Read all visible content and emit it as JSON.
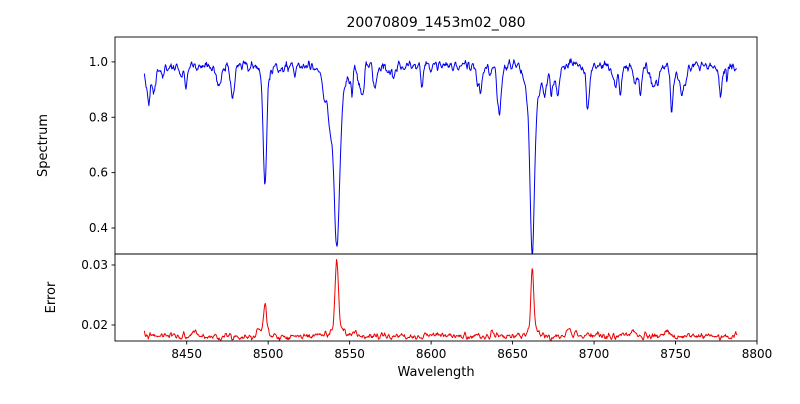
{
  "figure": {
    "title": "20070809_1453m02_080",
    "xlabel": "Wavelength",
    "background": "#ffffff"
  },
  "chart_data": [
    {
      "type": "line",
      "name": "spectrum",
      "ylabel": "Spectrum",
      "line_color": "#0000ee",
      "xlim": [
        8406,
        8800
      ],
      "ylim": [
        0.306,
        1.09
      ],
      "yticks": [
        {
          "v": 0.4,
          "label": "0.4"
        },
        {
          "v": 0.6,
          "label": "0.6"
        },
        {
          "v": 0.8,
          "label": "0.8"
        },
        {
          "v": 1.0,
          "label": "1.0"
        }
      ],
      "x_start": 8424,
      "x_end": 8788,
      "x_step": 0.35,
      "base": 0.985,
      "noise_sigma": 0.016,
      "feature_sign": -1,
      "seed": 42,
      "lines": [
        {
          "center": 8498.0,
          "core_amp": 0.38,
          "core_sigma": 1.0,
          "wing_amp": 0.055,
          "wing_sigma": 2.6
        },
        {
          "center": 8542.1,
          "core_amp": 0.53,
          "core_sigma": 1.7,
          "wing_amp": 0.115,
          "wing_sigma": 5.2
        },
        {
          "center": 8662.1,
          "core_amp": 0.5,
          "core_sigma": 1.5,
          "wing_amp": 0.1,
          "wing_sigma": 4.2
        }
      ],
      "random_features": {
        "count": 52,
        "amp_min": 0.004,
        "amp_max": 0.12,
        "sigma_min": 0.4,
        "sigma_max": 1.4
      }
    },
    {
      "type": "line",
      "name": "error",
      "ylabel": "Error",
      "line_color": "#ee0000",
      "xlim": [
        8406,
        8800
      ],
      "ylim": [
        0.01733,
        0.03183
      ],
      "yticks": [
        {
          "v": 0.02,
          "label": "0.02"
        },
        {
          "v": 0.03,
          "label": "0.03"
        }
      ],
      "xticks": [
        {
          "v": 8450,
          "label": "8450"
        },
        {
          "v": 8500,
          "label": "8500"
        },
        {
          "v": 8550,
          "label": "8550"
        },
        {
          "v": 8600,
          "label": "8600"
        },
        {
          "v": 8650,
          "label": "8650"
        },
        {
          "v": 8700,
          "label": "8700"
        },
        {
          "v": 8750,
          "label": "8750"
        },
        {
          "v": 8800,
          "label": "8800"
        }
      ],
      "x_start": 8424,
      "x_end": 8788,
      "x_step": 0.35,
      "base": 0.0181,
      "noise_sigma": 0.00045,
      "feature_sign": 1,
      "seed": 7,
      "lines": [
        {
          "center": 8498.0,
          "core_amp": 0.0047,
          "core_sigma": 0.9,
          "wing_amp": 0.0006,
          "wing_sigma": 3.0
        },
        {
          "center": 8542.1,
          "core_amp": 0.0116,
          "core_sigma": 1.0,
          "wing_amp": 0.0012,
          "wing_sigma": 4.0
        },
        {
          "center": 8662.1,
          "core_amp": 0.0098,
          "core_sigma": 0.9,
          "wing_amp": 0.001,
          "wing_sigma": 3.5
        },
        {
          "center": 8689.0,
          "core_amp": 0.0009,
          "core_sigma": 1.2,
          "wing_amp": 0,
          "wing_sigma": 1
        }
      ],
      "random_features": {
        "count": 30,
        "amp_min": 0.0001,
        "amp_max": 0.0007,
        "sigma_min": 0.4,
        "sigma_max": 1.5
      }
    }
  ]
}
